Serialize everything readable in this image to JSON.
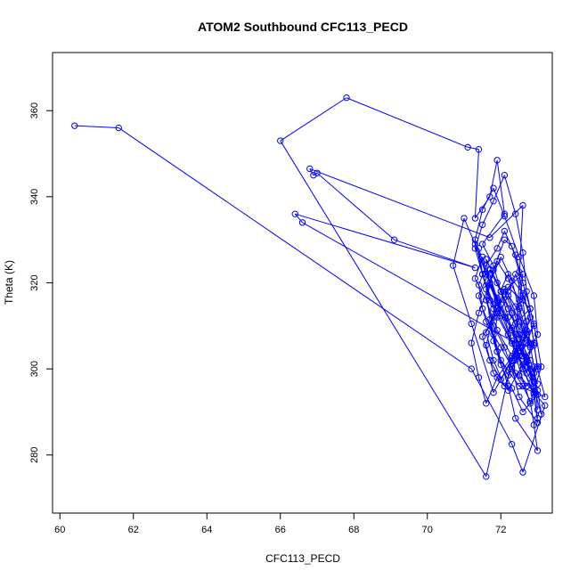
{
  "chart_data": {
    "type": "line",
    "title": "ATOM2 Southbound CFC113_PECD",
    "xlabel": "CFC113_PECD",
    "ylabel": "Theta (K)",
    "xlim": [
      59.8,
      73.4
    ],
    "ylim": [
      266.5,
      373.5
    ],
    "xticks": [
      60,
      62,
      64,
      66,
      68,
      70,
      72
    ],
    "yticks": [
      280,
      300,
      320,
      340,
      360
    ],
    "grid": false,
    "legend": "none",
    "series_color": "#0000ff",
    "markers": "open-circle",
    "x": [
      60.4,
      61.6,
      71.2,
      72.3,
      72.6,
      73.2,
      72.5,
      72.9,
      72.4,
      72.8,
      72.2,
      72.6,
      72.5,
      72.7,
      72.3,
      71.6,
      66.0,
      67.8,
      71.1,
      71.4,
      71.3,
      71.7,
      71.9,
      72.1,
      71.5,
      71.8,
      72.0,
      72.2,
      72.4,
      72.6,
      72.9,
      73.0,
      72.5,
      72.3,
      72.7,
      72.9,
      73.1,
      72.8,
      72.4,
      72.1,
      71.7,
      71.5,
      71.3,
      71.6,
      71.8,
      72.1,
      72.3,
      72.6,
      72.8,
      72.9,
      73.0,
      72.4,
      72.2,
      71.9,
      71.7,
      71.6,
      71.9,
      72.2,
      72.5,
      72.7,
      72.8,
      72.3,
      71.9,
      71.6,
      71.8,
      72.1,
      72.3,
      72.5,
      72.6,
      72.7,
      72.4,
      72.1,
      71.8,
      71.6,
      71.9,
      72.2,
      72.4,
      72.6,
      72.8,
      72.9,
      73.0,
      73.2,
      72.5,
      72.0,
      71.8,
      71.5,
      71.4,
      71.6,
      71.9,
      72.1,
      72.4,
      72.6,
      72.8,
      72.7,
      72.5,
      72.2,
      71.9,
      71.7,
      71.9,
      72.2,
      72.6,
      72.8,
      72.9,
      73.0,
      72.7,
      72.4,
      72.0,
      71.6,
      71.4,
      71.7,
      72.0,
      72.3,
      72.5,
      72.8,
      73.0,
      72.6,
      72.3,
      71.7,
      71.5,
      71.3,
      71.5,
      71.8,
      72.1,
      72.4,
      72.6,
      72.7,
      72.9,
      72.4,
      71.9,
      71.6,
      71.4,
      71.2,
      71.4,
      71.7,
      72.0,
      72.3,
      72.5,
      72.6,
      72.3,
      72.0,
      71.7,
      71.5,
      71.9,
      72.1,
      72.4,
      72.6,
      72.8,
      72.9,
      73.0,
      72.6,
      72.3,
      72.0,
      71.8,
      71.9,
      72.2,
      72.5,
      72.8,
      72.7,
      72.3,
      71.8,
      71.5,
      71.3,
      71.5,
      71.8,
      72.1,
      72.5,
      72.9,
      73.0,
      72.6,
      72.2,
      71.8,
      71.6,
      71.8,
      72.1,
      72.4,
      72.6,
      72.8,
      72.9,
      73.0,
      72.9,
      72.6,
      72.3,
      72.0,
      71.7,
      71.6,
      71.9,
      72.2,
      72.5,
      72.7,
      72.9,
      72.6,
      72.2,
      71.8,
      71.5,
      71.4,
      71.6,
      72.0,
      72.4,
      72.7,
      72.9,
      73.1,
      73.0,
      72.7,
      72.3,
      71.9,
      71.7,
      71.9,
      72.3,
      72.6,
      72.9,
      72.7,
      72.3,
      71.9,
      71.6,
      71.3,
      71.0,
      70.7,
      71.2,
      71.8,
      72.4,
      72.6,
      71.7,
      66.8,
      66.9,
      67.0,
      69.1,
      71.3,
      66.4,
      66.6,
      72.4,
      72.9,
      73.0
    ],
    "y": [
      356.5,
      356.0,
      300.0,
      282.5,
      276.0,
      291.5,
      298.5,
      305.5,
      310.5,
      314.0,
      319.0,
      322.0,
      314.5,
      308.0,
      302.0,
      275.0,
      353.0,
      363.0,
      351.5,
      351.0,
      335.0,
      340.0,
      348.5,
      336.0,
      329.0,
      324.0,
      318.0,
      312.0,
      306.0,
      300.0,
      294.5,
      287.5,
      293.5,
      300.5,
      306.0,
      310.5,
      300.5,
      292.0,
      303.0,
      312.0,
      320.0,
      326.0,
      321.0,
      316.0,
      310.0,
      305.0,
      300.0,
      296.0,
      292.5,
      287.0,
      281.0,
      288.5,
      296.0,
      304.0,
      311.5,
      318.5,
      325.0,
      321.0,
      316.0,
      311.0,
      306.0,
      303.0,
      309.0,
      316.0,
      323.0,
      330.0,
      328.5,
      322.5,
      316.0,
      309.0,
      302.0,
      296.0,
      302.0,
      308.5,
      314.0,
      318.0,
      322.0,
      317.0,
      312.0,
      306.0,
      300.0,
      293.5,
      296.0,
      302.0,
      308.0,
      314.0,
      319.5,
      324.0,
      328.0,
      332.0,
      326.5,
      320.0,
      314.0,
      308.0,
      303.0,
      298.5,
      304.0,
      310.0,
      316.5,
      322.0,
      317.5,
      312.0,
      306.0,
      300.5,
      296.0,
      299.0,
      305.0,
      311.0,
      317.0,
      323.0,
      318.0,
      313.0,
      307.0,
      302.0,
      296.5,
      303.0,
      309.5,
      316.0,
      322.0,
      328.0,
      333.5,
      339.0,
      345.0,
      336.0,
      327.0,
      318.0,
      310.0,
      304.0,
      298.0,
      292.0,
      298.0,
      306.0,
      313.0,
      320.0,
      326.0,
      320.5,
      314.0,
      308.0,
      302.5,
      297.5,
      302.0,
      307.5,
      313.0,
      318.5,
      314.5,
      310.0,
      305.5,
      300.5,
      294.0,
      290.0,
      295.5,
      301.0,
      306.5,
      312.0,
      317.0,
      311.0,
      305.0,
      299.0,
      306.0,
      314.0,
      322.0,
      330.0,
      337.0,
      342.0,
      335.5,
      326.0,
      317.0,
      308.0,
      301.0,
      295.0,
      299.0,
      305.5,
      312.0,
      318.0,
      312.0,
      306.0,
      300.0,
      294.5,
      288.5,
      294.0,
      300.0,
      306.5,
      313.0,
      319.5,
      325.5,
      320.0,
      314.0,
      308.0,
      301.5,
      296.0,
      301.0,
      308.0,
      315.0,
      322.0,
      328.0,
      322.0,
      315.0,
      308.0,
      301.5,
      295.5,
      289.5,
      295.0,
      302.0,
      309.0,
      316.0,
      322.0,
      316.0,
      309.0,
      303.0,
      297.0,
      302.5,
      309.0,
      315.5,
      322.0,
      329.0,
      335.0,
      324.0,
      310.5,
      294.5,
      303.5,
      338.0,
      330.5,
      346.5,
      345.0,
      345.5,
      330.0,
      323.5,
      336.0,
      334.0,
      306.0,
      299.0,
      290.5
    ]
  }
}
